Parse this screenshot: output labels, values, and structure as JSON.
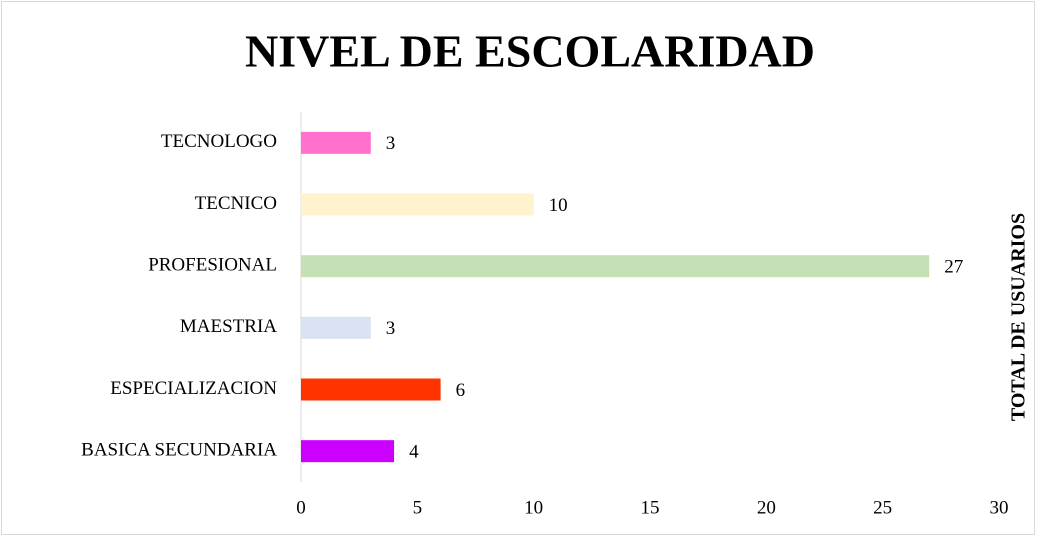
{
  "chart_data": {
    "type": "bar",
    "orientation": "horizontal",
    "title": "NIVEL DE ESCOLARIDAD",
    "y2_label": "TOTAL DE USUARIOS",
    "categories": [
      "TECNOLOGO",
      "TECNICO",
      "PROFESIONAL",
      "MAESTRIA",
      "ESPECIALIZACION",
      "BASICA SECUNDARIA"
    ],
    "values": [
      3,
      10,
      27,
      3,
      6,
      4
    ],
    "colors": [
      "#ff71cd",
      "#fff2cc",
      "#c5e0b4",
      "#dae3f3",
      "#ff3300",
      "#cc00ff"
    ],
    "xlim": [
      0,
      30
    ],
    "xticks": [
      0,
      5,
      10,
      15,
      20,
      25,
      30
    ],
    "grid": false
  }
}
